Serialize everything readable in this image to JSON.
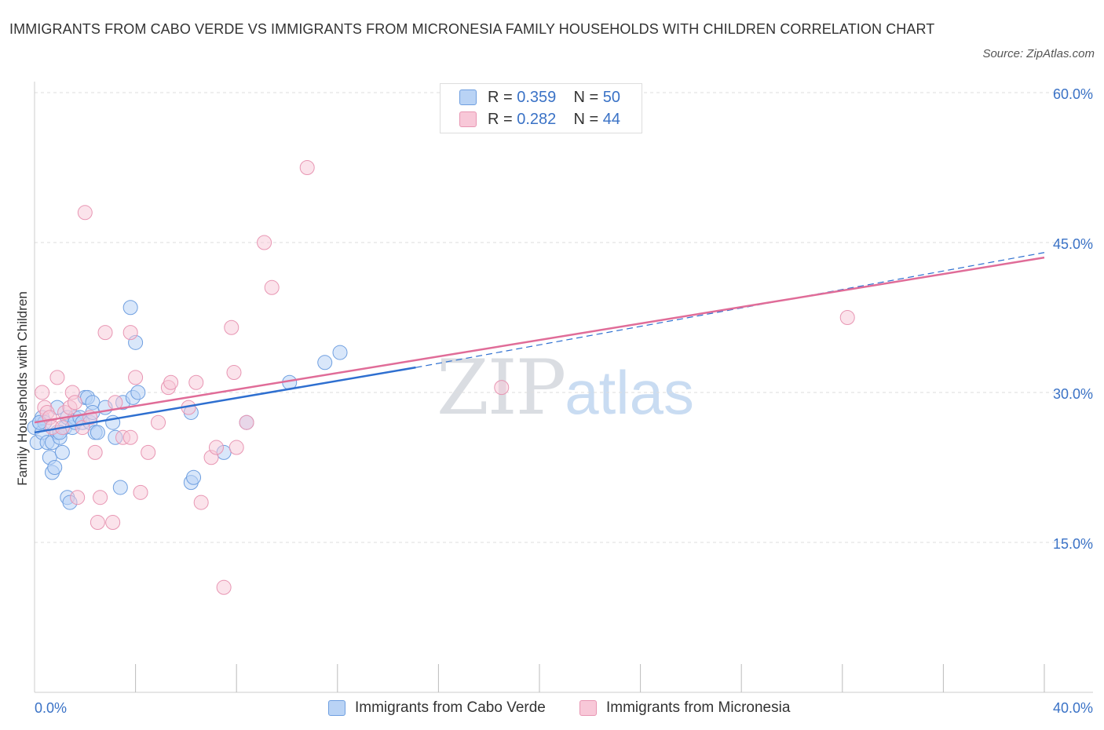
{
  "title": "IMMIGRANTS FROM CABO VERDE VS IMMIGRANTS FROM MICRONESIA FAMILY HOUSEHOLDS WITH CHILDREN CORRELATION CHART",
  "source": "Source: ZipAtlas.com",
  "watermark": {
    "zip": "ZIP",
    "atlas": "atlas"
  },
  "legend": {
    "rows": [
      {
        "r_label": "R =",
        "r_value": "0.359",
        "n_label": "N =",
        "n_value": "50"
      },
      {
        "r_label": "R =",
        "r_value": "0.282",
        "n_label": "N =",
        "n_value": "44"
      }
    ]
  },
  "bottom_legend": {
    "series_a": "Immigrants from Cabo Verde",
    "series_b": "Immigrants from Micronesia"
  },
  "colors": {
    "blue_fill": "#b9d3f5",
    "blue_stroke": "#6f9fe0",
    "blue_line": "#2e6fd0",
    "pink_fill": "#f8c8d8",
    "pink_stroke": "#e896b3",
    "pink_line": "#e06c98",
    "tick": "#3a72c6",
    "grid": "#dddddd"
  },
  "chart_data": {
    "type": "scatter",
    "title": "IMMIGRANTS FROM CABO VERDE VS IMMIGRANTS FROM MICRONESIA FAMILY HOUSEHOLDS WITH CHILDREN CORRELATION CHART",
    "xlabel": "",
    "ylabel": "Family Households with Children",
    "xlim": [
      0,
      40
    ],
    "ylim": [
      0,
      60
    ],
    "x_tick_labels": [
      "0.0%",
      "40.0%"
    ],
    "y_ticks": [
      15,
      30,
      45,
      60
    ],
    "y_tick_labels": [
      "15.0%",
      "30.0%",
      "45.0%",
      "60.0%"
    ],
    "legend_position": "top-center",
    "series": [
      {
        "name": "Immigrants from Cabo Verde",
        "R": 0.359,
        "N": 50,
        "trend": {
          "x0": 0,
          "y0": 26.0,
          "x1": 15.1,
          "y1": 32.5,
          "dashed_to_x": 40,
          "dashed_to_y": 44.0
        },
        "points": [
          [
            0.0,
            26.5
          ],
          [
            0.1,
            25.0
          ],
          [
            0.2,
            27.0
          ],
          [
            0.3,
            27.5
          ],
          [
            0.3,
            26.0
          ],
          [
            0.4,
            27.0
          ],
          [
            0.5,
            25.0
          ],
          [
            0.6,
            23.5
          ],
          [
            0.7,
            25.0
          ],
          [
            0.7,
            22.0
          ],
          [
            0.8,
            22.5
          ],
          [
            0.9,
            28.5
          ],
          [
            0.9,
            26.0
          ],
          [
            1.0,
            25.5
          ],
          [
            1.1,
            24.0
          ],
          [
            1.2,
            26.5
          ],
          [
            1.3,
            27.5
          ],
          [
            1.3,
            19.5
          ],
          [
            1.4,
            19.0
          ],
          [
            1.5,
            26.5
          ],
          [
            1.6,
            27.5
          ],
          [
            1.6,
            27.0
          ],
          [
            1.8,
            27.5
          ],
          [
            1.9,
            27.0
          ],
          [
            2.0,
            29.5
          ],
          [
            2.1,
            29.5
          ],
          [
            2.2,
            27.0
          ],
          [
            2.3,
            29.0
          ],
          [
            2.3,
            28.0
          ],
          [
            2.4,
            26.0
          ],
          [
            2.5,
            26.0
          ],
          [
            2.8,
            28.5
          ],
          [
            3.1,
            27.0
          ],
          [
            3.2,
            25.5
          ],
          [
            3.5,
            29.0
          ],
          [
            3.4,
            20.5
          ],
          [
            3.8,
            38.5
          ],
          [
            3.9,
            29.5
          ],
          [
            4.0,
            35.0
          ],
          [
            4.1,
            30.0
          ],
          [
            6.2,
            28.0
          ],
          [
            6.2,
            21.0
          ],
          [
            6.3,
            21.5
          ],
          [
            7.5,
            24.0
          ],
          [
            8.4,
            27.0
          ],
          [
            10.1,
            31.0
          ],
          [
            11.5,
            33.0
          ],
          [
            12.1,
            34.0
          ],
          [
            0.2,
            27.0
          ],
          [
            1.0,
            26.0
          ]
        ]
      },
      {
        "name": "Immigrants from Micronesia",
        "R": 0.282,
        "N": 44,
        "trend": {
          "x0": 0,
          "y0": 27.0,
          "x1": 40,
          "y1": 43.5
        },
        "points": [
          [
            0.3,
            30.0
          ],
          [
            0.4,
            28.5
          ],
          [
            0.5,
            28.0
          ],
          [
            0.6,
            27.5
          ],
          [
            0.7,
            26.5
          ],
          [
            0.9,
            31.5
          ],
          [
            1.1,
            26.5
          ],
          [
            1.2,
            28.0
          ],
          [
            1.4,
            28.5
          ],
          [
            1.5,
            30.0
          ],
          [
            1.6,
            29.0
          ],
          [
            1.7,
            19.5
          ],
          [
            1.9,
            26.5
          ],
          [
            2.0,
            48.0
          ],
          [
            2.2,
            27.5
          ],
          [
            2.4,
            24.0
          ],
          [
            2.5,
            17.0
          ],
          [
            2.6,
            19.5
          ],
          [
            2.8,
            36.0
          ],
          [
            3.1,
            17.0
          ],
          [
            3.2,
            29.0
          ],
          [
            3.5,
            25.5
          ],
          [
            3.8,
            36.0
          ],
          [
            3.8,
            25.5
          ],
          [
            4.0,
            31.5
          ],
          [
            4.2,
            20.0
          ],
          [
            4.5,
            24.0
          ],
          [
            4.9,
            27.0
          ],
          [
            5.3,
            30.5
          ],
          [
            5.4,
            31.0
          ],
          [
            6.1,
            28.5
          ],
          [
            6.4,
            31.0
          ],
          [
            6.6,
            19.0
          ],
          [
            7.0,
            23.5
          ],
          [
            7.2,
            24.5
          ],
          [
            7.5,
            10.5
          ],
          [
            7.8,
            36.5
          ],
          [
            7.9,
            32.0
          ],
          [
            8.0,
            24.5
          ],
          [
            8.4,
            27.0
          ],
          [
            9.1,
            45.0
          ],
          [
            9.4,
            40.5
          ],
          [
            10.8,
            52.5
          ],
          [
            18.5,
            30.5
          ]
        ]
      }
    ],
    "extra_pink_point": [
      32.2,
      37.5
    ]
  }
}
